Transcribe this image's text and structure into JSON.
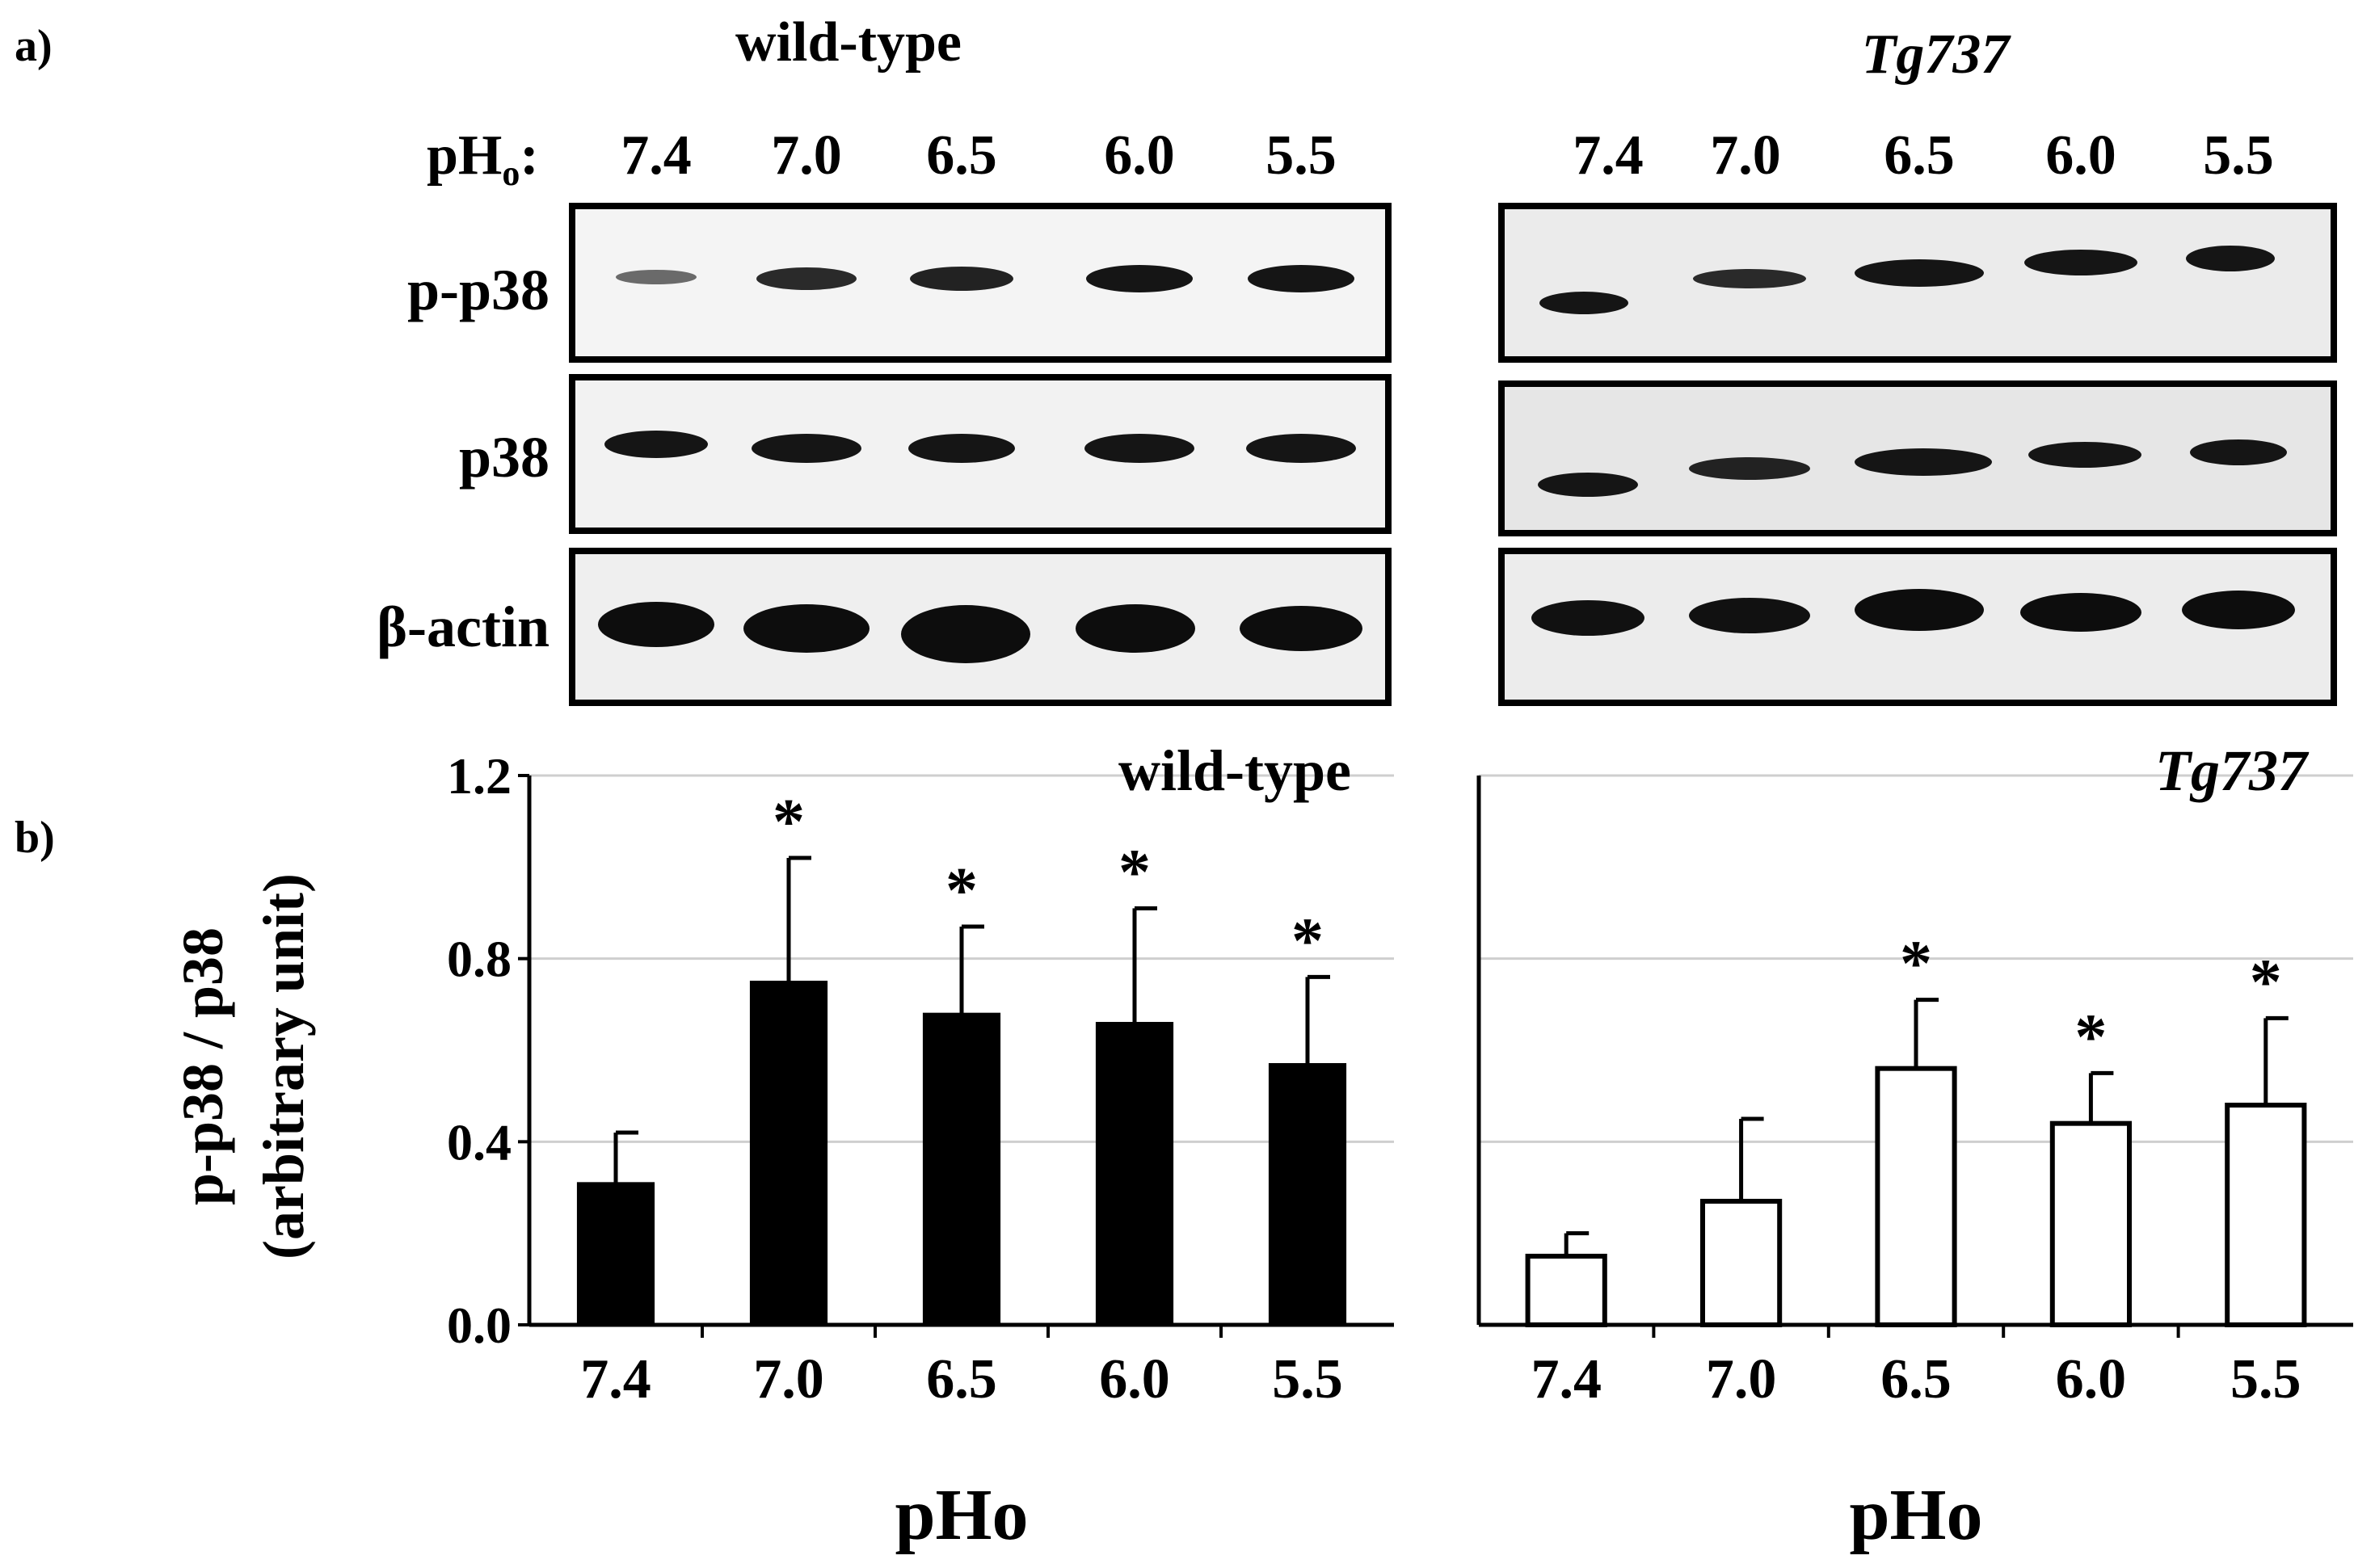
{
  "panel_a": {
    "label": "a)",
    "ph_label_main": "pH",
    "ph_label_sub": "o",
    "ph_label_suffix": ":",
    "groups": [
      {
        "name": "wild-type",
        "italic": false,
        "lanes": [
          "7.4",
          "7.0",
          "6.5",
          "6.0",
          "5.5"
        ]
      },
      {
        "name": "Tg737",
        "italic": true,
        "lanes": [
          "7.4",
          "7.0",
          "6.5",
          "6.0",
          "5.5"
        ]
      }
    ],
    "blot_rows": [
      "p-p38",
      "p38",
      "β-actin"
    ]
  },
  "panel_b": {
    "label": "b)",
    "ylabel_line1": "p-p38 / p38",
    "ylabel_line2": "(arbitrary unit)",
    "significance_marker": "*"
  },
  "chart_data": [
    {
      "type": "bar",
      "title": "wild-type",
      "categories": [
        "7.4",
        "7.0",
        "6.5",
        "6.0",
        "5.5"
      ],
      "values": [
        0.31,
        0.75,
        0.68,
        0.66,
        0.57
      ],
      "errors": [
        0.11,
        0.27,
        0.19,
        0.25,
        0.19
      ],
      "significant": [
        false,
        true,
        true,
        true,
        true
      ],
      "xlabel": "pHo",
      "ylabel": "p-p38 / p38 (arbitrary unit)",
      "ylim": [
        0,
        1.2
      ],
      "yticks": [
        "0.0",
        "0.4",
        "0.8",
        "1.2"
      ],
      "bar_color": "#000000",
      "grid": true
    },
    {
      "type": "bar",
      "title": "Tg737",
      "categories": [
        "7.4",
        "7.0",
        "6.5",
        "6.0",
        "5.5"
      ],
      "values": [
        0.15,
        0.27,
        0.56,
        0.44,
        0.48
      ],
      "errors": [
        0.05,
        0.18,
        0.15,
        0.11,
        0.19
      ],
      "significant": [
        false,
        false,
        true,
        true,
        true
      ],
      "xlabel": "pHo",
      "ylabel": "",
      "ylim": [
        0,
        1.2
      ],
      "yticks": [],
      "bar_color": "#ffffff",
      "grid": true
    }
  ]
}
